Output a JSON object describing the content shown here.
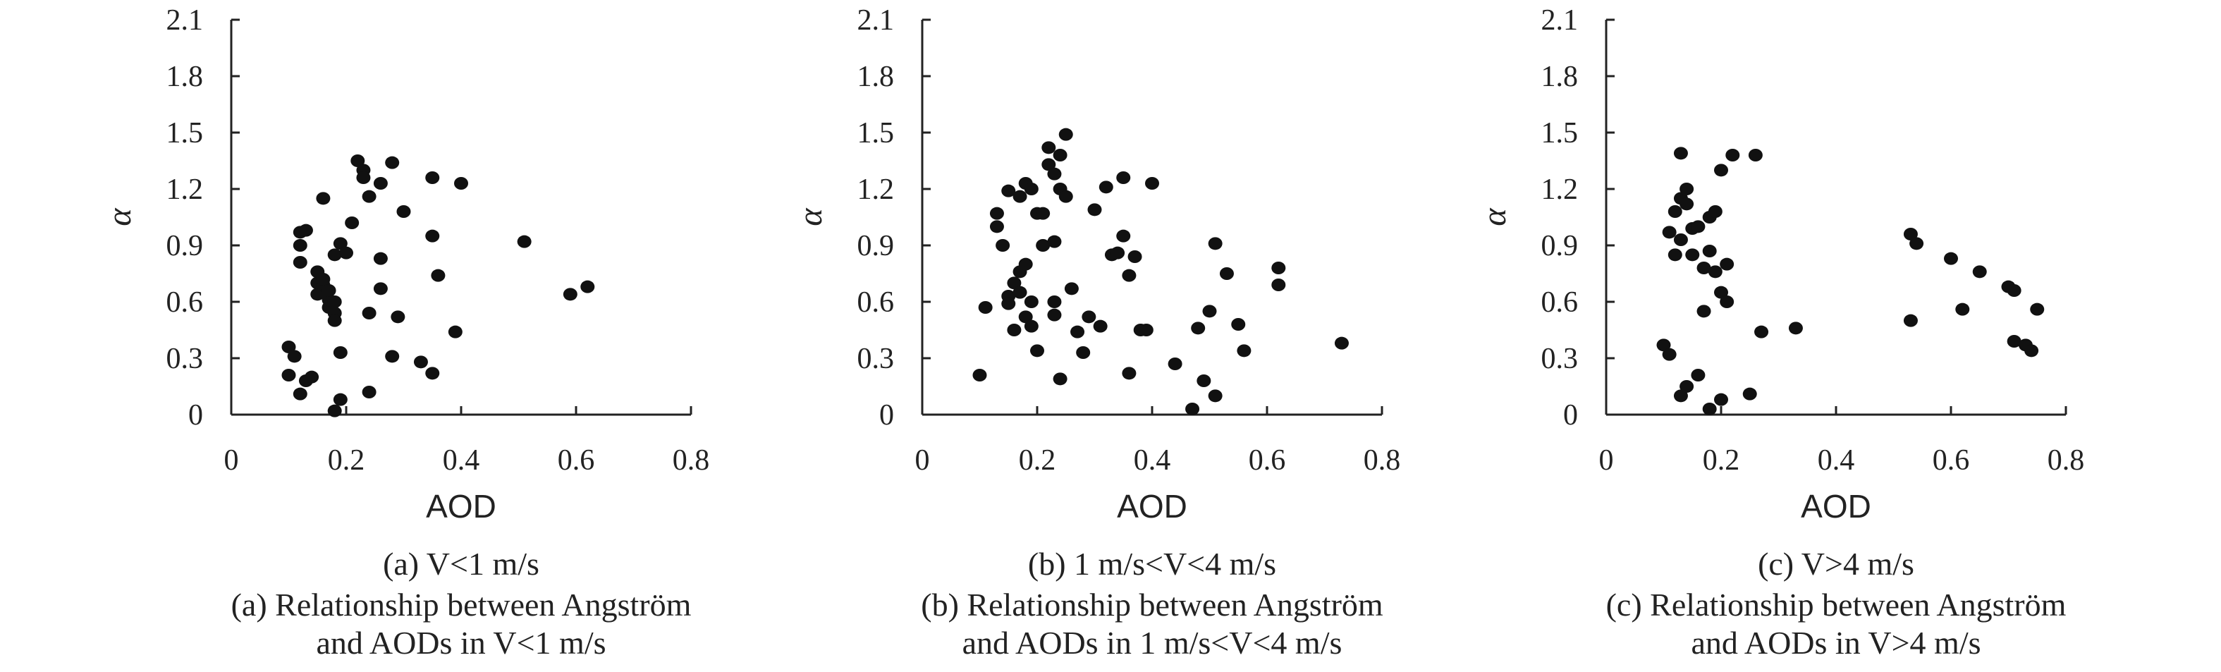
{
  "chart_data": [
    {
      "type": "scatter",
      "title": "(a) V<1 m/s",
      "caption": [
        "(a) Relationship between Angström",
        "and AODs in V<1 m/s"
      ],
      "xlabel": "AOD",
      "ylabel": "α",
      "xlim": [
        0,
        0.8
      ],
      "ylim": [
        0,
        2.1
      ],
      "xticks": [
        "0",
        "0.2",
        "0.4",
        "0.6",
        "0.8"
      ],
      "yticks": [
        "0",
        "0.3",
        "0.6",
        "0.9",
        "1.2",
        "1.5",
        "1.8",
        "2.1"
      ],
      "grid": false,
      "points": [
        [
          0.1,
          0.36
        ],
        [
          0.1,
          0.21
        ],
        [
          0.11,
          0.31
        ],
        [
          0.12,
          0.11
        ],
        [
          0.13,
          0.18
        ],
        [
          0.14,
          0.2
        ],
        [
          0.12,
          0.81
        ],
        [
          0.12,
          0.9
        ],
        [
          0.12,
          0.97
        ],
        [
          0.13,
          0.98
        ],
        [
          0.15,
          0.64
        ],
        [
          0.15,
          0.7
        ],
        [
          0.15,
          0.76
        ],
        [
          0.16,
          0.69
        ],
        [
          0.16,
          0.72
        ],
        [
          0.17,
          0.57
        ],
        [
          0.17,
          0.61
        ],
        [
          0.17,
          0.66
        ],
        [
          0.16,
          1.15
        ],
        [
          0.18,
          0.6
        ],
        [
          0.18,
          0.54
        ],
        [
          0.18,
          0.5
        ],
        [
          0.18,
          0.02
        ],
        [
          0.19,
          0.08
        ],
        [
          0.19,
          0.33
        ],
        [
          0.18,
          0.85
        ],
        [
          0.19,
          0.91
        ],
        [
          0.2,
          0.86
        ],
        [
          0.21,
          1.02
        ],
        [
          0.22,
          1.35
        ],
        [
          0.23,
          1.3
        ],
        [
          0.23,
          1.26
        ],
        [
          0.24,
          1.16
        ],
        [
          0.24,
          0.54
        ],
        [
          0.24,
          0.12
        ],
        [
          0.26,
          0.67
        ],
        [
          0.26,
          0.83
        ],
        [
          0.26,
          1.23
        ],
        [
          0.28,
          1.34
        ],
        [
          0.28,
          0.31
        ],
        [
          0.29,
          0.52
        ],
        [
          0.3,
          1.08
        ],
        [
          0.33,
          0.28
        ],
        [
          0.35,
          0.95
        ],
        [
          0.35,
          1.26
        ],
        [
          0.36,
          0.74
        ],
        [
          0.35,
          0.22
        ],
        [
          0.39,
          0.44
        ],
        [
          0.4,
          1.23
        ],
        [
          0.51,
          0.92
        ],
        [
          0.59,
          0.64
        ],
        [
          0.62,
          0.68
        ]
      ]
    },
    {
      "type": "scatter",
      "title": "(b) 1 m/s<V<4 m/s",
      "caption": [
        "(b) Relationship between Angström",
        "and AODs in 1 m/s<V<4 m/s"
      ],
      "xlabel": "AOD",
      "ylabel": "α",
      "xlim": [
        0,
        0.8
      ],
      "ylim": [
        0,
        2.1
      ],
      "xticks": [
        "0",
        "0.2",
        "0.4",
        "0.6",
        "0.8"
      ],
      "yticks": [
        "0",
        "0.3",
        "0.6",
        "0.9",
        "1.2",
        "1.5",
        "1.8",
        "2.1"
      ],
      "grid": false,
      "points": [
        [
          0.1,
          0.21
        ],
        [
          0.11,
          0.57
        ],
        [
          0.13,
          1.07
        ],
        [
          0.13,
          1.0
        ],
        [
          0.14,
          0.9
        ],
        [
          0.15,
          1.19
        ],
        [
          0.15,
          0.63
        ],
        [
          0.15,
          0.59
        ],
        [
          0.16,
          0.45
        ],
        [
          0.16,
          0.7
        ],
        [
          0.17,
          0.76
        ],
        [
          0.17,
          0.65
        ],
        [
          0.17,
          1.16
        ],
        [
          0.18,
          1.23
        ],
        [
          0.18,
          0.8
        ],
        [
          0.18,
          0.52
        ],
        [
          0.19,
          0.47
        ],
        [
          0.19,
          0.6
        ],
        [
          0.19,
          1.2
        ],
        [
          0.2,
          1.07
        ],
        [
          0.2,
          0.34
        ],
        [
          0.21,
          0.9
        ],
        [
          0.21,
          1.07
        ],
        [
          0.22,
          1.42
        ],
        [
          0.22,
          1.33
        ],
        [
          0.23,
          1.28
        ],
        [
          0.23,
          0.92
        ],
        [
          0.23,
          0.6
        ],
        [
          0.23,
          0.53
        ],
        [
          0.24,
          1.38
        ],
        [
          0.24,
          1.2
        ],
        [
          0.24,
          0.19
        ],
        [
          0.25,
          1.49
        ],
        [
          0.25,
          1.16
        ],
        [
          0.26,
          0.67
        ],
        [
          0.27,
          0.44
        ],
        [
          0.28,
          0.33
        ],
        [
          0.29,
          0.52
        ],
        [
          0.3,
          1.09
        ],
        [
          0.31,
          0.47
        ],
        [
          0.32,
          1.21
        ],
        [
          0.33,
          0.85
        ],
        [
          0.34,
          0.86
        ],
        [
          0.35,
          0.95
        ],
        [
          0.35,
          1.26
        ],
        [
          0.36,
          0.74
        ],
        [
          0.36,
          0.22
        ],
        [
          0.37,
          0.84
        ],
        [
          0.38,
          0.45
        ],
        [
          0.39,
          0.45
        ],
        [
          0.4,
          1.23
        ],
        [
          0.44,
          0.27
        ],
        [
          0.47,
          0.03
        ],
        [
          0.48,
          0.46
        ],
        [
          0.49,
          0.18
        ],
        [
          0.5,
          0.55
        ],
        [
          0.51,
          0.91
        ],
        [
          0.51,
          0.1
        ],
        [
          0.53,
          0.75
        ],
        [
          0.55,
          0.48
        ],
        [
          0.56,
          0.34
        ],
        [
          0.62,
          0.78
        ],
        [
          0.62,
          0.69
        ],
        [
          0.73,
          0.38
        ]
      ]
    },
    {
      "type": "scatter",
      "title": "(c) V>4 m/s",
      "caption": [
        "(c) Relationship between Angström",
        "and AODs in V>4 m/s"
      ],
      "xlabel": "AOD",
      "ylabel": "α",
      "xlim": [
        0,
        0.8
      ],
      "ylim": [
        0,
        2.1
      ],
      "xticks": [
        "0",
        "0.2",
        "0.4",
        "0.6",
        "0.8"
      ],
      "yticks": [
        "0",
        "0.3",
        "0.6",
        "0.9",
        "1.2",
        "1.5",
        "1.8",
        "2.1"
      ],
      "grid": false,
      "points": [
        [
          0.1,
          0.37
        ],
        [
          0.11,
          0.32
        ],
        [
          0.11,
          0.97
        ],
        [
          0.12,
          1.08
        ],
        [
          0.12,
          0.85
        ],
        [
          0.13,
          0.1
        ],
        [
          0.13,
          0.93
        ],
        [
          0.13,
          1.15
        ],
        [
          0.14,
          1.2
        ],
        [
          0.14,
          1.12
        ],
        [
          0.14,
          0.15
        ],
        [
          0.15,
          0.99
        ],
        [
          0.15,
          0.85
        ],
        [
          0.16,
          0.21
        ],
        [
          0.16,
          1.0
        ],
        [
          0.17,
          0.55
        ],
        [
          0.17,
          0.78
        ],
        [
          0.18,
          0.03
        ],
        [
          0.18,
          0.87
        ],
        [
          0.18,
          1.05
        ],
        [
          0.19,
          1.08
        ],
        [
          0.19,
          0.76
        ],
        [
          0.2,
          0.65
        ],
        [
          0.2,
          1.3
        ],
        [
          0.2,
          0.08
        ],
        [
          0.21,
          0.6
        ],
        [
          0.21,
          0.8
        ],
        [
          0.22,
          1.38
        ],
        [
          0.25,
          0.11
        ],
        [
          0.26,
          1.38
        ],
        [
          0.27,
          0.44
        ],
        [
          0.13,
          1.39
        ],
        [
          0.33,
          0.46
        ],
        [
          0.53,
          0.96
        ],
        [
          0.54,
          0.91
        ],
        [
          0.53,
          0.5
        ],
        [
          0.6,
          0.83
        ],
        [
          0.62,
          0.56
        ],
        [
          0.65,
          0.76
        ],
        [
          0.7,
          0.68
        ],
        [
          0.71,
          0.66
        ],
        [
          0.71,
          0.39
        ],
        [
          0.73,
          0.37
        ],
        [
          0.74,
          0.34
        ],
        [
          0.75,
          0.56
        ]
      ]
    }
  ]
}
